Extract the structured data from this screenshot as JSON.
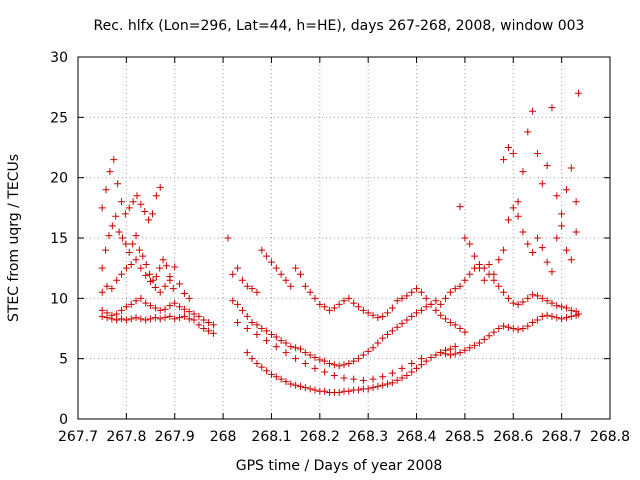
{
  "chart_data": {
    "type": "scatter",
    "title": "Rec. hlfx (Lon=296, Lat=44, h=HE), days 267-268, 2008, window 003",
    "xlabel": "GPS time / Days of year 2008",
    "ylabel": "STEC from uqrg / TECUs",
    "xlim": [
      267.7,
      268.8
    ],
    "ylim": [
      0,
      30
    ],
    "xticks": [
      267.7,
      267.8,
      267.9,
      268.0,
      268.1,
      268.2,
      268.3,
      268.4,
      268.5,
      268.6,
      268.7,
      268.8
    ],
    "xtick_labels": [
      "267.7",
      "267.8",
      "267.9",
      "268",
      "268.1",
      "268.2",
      "268.3",
      "268.4",
      "268.5",
      "268.6",
      "268.7",
      "268.8"
    ],
    "yticks": [
      0,
      5,
      10,
      15,
      20,
      25,
      30
    ],
    "ytick_labels": [
      "0",
      "5",
      "10",
      "15",
      "20",
      "25",
      "30"
    ],
    "grid": true,
    "marker": "plus",
    "color": "#cc0000",
    "series": [
      {
        "x": [
          267.75,
          267.76,
          267.77,
          267.78,
          267.79,
          267.8,
          267.81,
          267.82,
          267.83,
          267.84,
          267.85,
          267.86,
          267.87,
          267.88,
          267.89,
          267.9,
          267.91,
          267.92,
          267.93,
          267.94,
          267.95,
          267.96,
          267.97,
          267.98,
          267.75,
          267.76,
          267.77,
          267.78,
          267.79,
          267.8,
          267.81,
          267.82,
          267.83,
          267.84,
          267.85,
          267.86,
          267.87,
          267.88,
          267.89,
          267.9,
          267.91,
          267.92,
          267.93,
          267.94,
          267.95,
          267.96,
          267.97,
          267.98,
          267.75,
          267.76,
          267.77,
          267.78,
          267.79,
          267.8,
          267.81,
          267.82,
          267.83,
          267.84,
          267.85,
          267.86,
          267.87,
          267.88,
          267.89,
          267.9,
          267.91,
          267.92,
          267.93,
          267.75,
          267.757,
          267.764,
          267.771,
          267.778,
          267.785,
          267.792,
          267.799,
          267.806,
          267.813,
          267.82,
          267.827,
          267.834,
          267.841,
          267.848,
          267.855,
          267.862,
          267.869,
          267.876,
          267.883,
          267.89,
          267.897,
          267.75,
          267.758,
          267.766,
          267.774,
          267.782,
          267.79,
          267.798,
          267.806,
          267.814,
          267.822,
          267.83,
          267.838,
          267.846,
          267.854,
          267.862,
          267.87,
          268.01,
          268.02,
          268.03,
          268.04,
          268.05,
          268.06,
          268.07,
          268.08,
          268.09,
          268.1,
          268.11,
          268.12,
          268.13,
          268.14,
          268.15,
          268.16,
          268.17,
          268.18,
          268.19,
          268.2,
          268.21,
          268.22,
          268.23,
          268.24,
          268.25,
          268.26,
          268.27,
          268.28,
          268.29,
          268.3,
          268.31,
          268.32,
          268.33,
          268.34,
          268.35,
          268.36,
          268.37,
          268.38,
          268.39,
          268.4,
          268.41,
          268.42,
          268.43,
          268.44,
          268.45,
          268.46,
          268.47,
          268.48,
          268.49,
          268.5,
          268.02,
          268.03,
          268.04,
          268.05,
          268.06,
          268.07,
          268.08,
          268.09,
          268.1,
          268.11,
          268.12,
          268.13,
          268.14,
          268.15,
          268.16,
          268.17,
          268.18,
          268.19,
          268.2,
          268.21,
          268.22,
          268.23,
          268.24,
          268.25,
          268.26,
          268.27,
          268.28,
          268.29,
          268.3,
          268.31,
          268.32,
          268.33,
          268.34,
          268.35,
          268.36,
          268.37,
          268.38,
          268.39,
          268.4,
          268.41,
          268.42,
          268.43,
          268.44,
          268.05,
          268.06,
          268.07,
          268.08,
          268.09,
          268.1,
          268.11,
          268.12,
          268.13,
          268.14,
          268.15,
          268.16,
          268.17,
          268.18,
          268.19,
          268.2,
          268.21,
          268.22,
          268.23,
          268.24,
          268.25,
          268.26,
          268.27,
          268.28,
          268.29,
          268.3,
          268.31,
          268.32,
          268.33,
          268.34,
          268.35,
          268.36,
          268.37,
          268.38,
          268.39,
          268.4,
          268.41,
          268.42,
          268.43,
          268.44,
          268.45,
          268.46,
          268.47,
          268.48,
          268.03,
          268.05,
          268.07,
          268.09,
          268.11,
          268.13,
          268.15,
          268.17,
          268.19,
          268.21,
          268.23,
          268.25,
          268.27,
          268.29,
          268.31,
          268.33,
          268.35,
          268.37,
          268.39,
          268.41,
          268.45,
          268.46,
          268.47,
          268.48,
          268.49,
          268.5,
          268.51,
          268.52,
          268.53,
          268.54,
          268.55,
          268.56,
          268.57,
          268.58,
          268.59,
          268.6,
          268.61,
          268.62,
          268.63,
          268.64,
          268.65,
          268.66,
          268.67,
          268.68,
          268.69,
          268.7,
          268.71,
          268.72,
          268.73,
          268.735,
          268.45,
          268.46,
          268.47,
          268.48,
          268.49,
          268.5,
          268.51,
          268.52,
          268.53,
          268.54,
          268.55,
          268.56,
          268.57,
          268.58,
          268.59,
          268.6,
          268.61,
          268.62,
          268.63,
          268.64,
          268.65,
          268.66,
          268.67,
          268.68,
          268.69,
          268.7,
          268.71,
          268.72,
          268.73,
          268.58,
          268.59,
          268.6,
          268.61,
          268.62,
          268.63,
          268.64,
          268.65,
          268.66,
          268.67,
          268.68,
          268.69,
          268.7,
          268.71,
          268.72,
          268.73,
          268.735,
          268.49,
          268.5,
          268.51,
          268.52,
          268.53,
          268.54,
          268.55,
          268.56,
          268.57,
          268.58,
          268.59,
          268.6,
          268.61,
          268.62,
          268.63,
          268.64,
          268.65,
          268.66,
          268.67,
          268.68,
          268.69,
          268.7,
          268.71,
          268.72,
          268.73
        ],
        "y": [
          8.5,
          8.4,
          8.3,
          8.2,
          8.3,
          8.2,
          8.3,
          8.4,
          8.3,
          8.2,
          8.3,
          8.4,
          8.3,
          8.4,
          8.5,
          8.3,
          8.4,
          8.5,
          8.3,
          8.2,
          7.8,
          7.5,
          7.3,
          7.1,
          9.0,
          8.8,
          8.6,
          8.7,
          9.0,
          9.3,
          9.5,
          9.8,
          10.0,
          9.6,
          9.4,
          9.2,
          9.0,
          9.1,
          9.4,
          9.6,
          9.3,
          9.1,
          8.9,
          8.7,
          8.5,
          8.2,
          8.0,
          7.8,
          10.5,
          11.0,
          10.8,
          11.5,
          12.0,
          12.5,
          12.8,
          13.2,
          12.5,
          11.9,
          11.4,
          10.9,
          10.5,
          11.0,
          11.8,
          12.6,
          11.2,
          10.4,
          10.0,
          12.5,
          14.0,
          15.2,
          16.0,
          16.8,
          15.5,
          15.0,
          14.5,
          13.8,
          14.5,
          15.2,
          14.0,
          13.5,
          12.8,
          12.0,
          11.5,
          11.8,
          12.5,
          13.2,
          12.7,
          11.5,
          10.8,
          17.5,
          19.0,
          20.5,
          21.5,
          19.5,
          18.0,
          17.0,
          17.5,
          18.0,
          18.5,
          17.8,
          17.2,
          16.5,
          17.0,
          18.5,
          19.2,
          15.0,
          12.0,
          12.5,
          11.5,
          11.0,
          10.8,
          10.5,
          14.0,
          13.5,
          13.0,
          12.5,
          12.0,
          11.5,
          11.0,
          12.5,
          12.0,
          11.0,
          10.5,
          10.0,
          9.5,
          9.3,
          9.0,
          9.2,
          9.5,
          9.8,
          10.0,
          9.6,
          9.3,
          9.0,
          8.8,
          8.6,
          8.4,
          8.5,
          8.8,
          9.2,
          9.8,
          10.0,
          10.2,
          10.5,
          10.8,
          10.5,
          10.0,
          9.5,
          9.0,
          8.6,
          8.3,
          8.0,
          7.8,
          7.5,
          7.2,
          9.8,
          9.5,
          9.0,
          8.5,
          8.0,
          7.8,
          7.5,
          7.3,
          7.0,
          6.8,
          6.5,
          6.3,
          6.0,
          5.9,
          5.8,
          5.5,
          5.3,
          5.1,
          4.9,
          4.8,
          4.6,
          4.5,
          4.4,
          4.5,
          4.6,
          4.8,
          5.0,
          5.3,
          5.6,
          5.9,
          6.3,
          6.7,
          7.0,
          7.3,
          7.6,
          7.9,
          8.2,
          8.5,
          8.8,
          9.0,
          9.3,
          9.5,
          9.8,
          5.5,
          5.0,
          4.6,
          4.3,
          4.0,
          3.7,
          3.5,
          3.3,
          3.1,
          2.9,
          2.8,
          2.7,
          2.6,
          2.5,
          2.4,
          2.3,
          2.3,
          2.2,
          2.2,
          2.2,
          2.3,
          2.3,
          2.4,
          2.4,
          2.5,
          2.5,
          2.6,
          2.7,
          2.8,
          2.9,
          3.0,
          3.2,
          3.4,
          3.6,
          3.9,
          4.2,
          4.5,
          4.8,
          5.1,
          5.3,
          5.5,
          5.7,
          5.8,
          6.0,
          8.0,
          7.5,
          7.0,
          6.5,
          6.0,
          5.5,
          5.0,
          4.6,
          4.2,
          3.9,
          3.6,
          3.4,
          3.3,
          3.2,
          3.3,
          3.5,
          3.8,
          4.2,
          4.6,
          5.0,
          5.5,
          5.4,
          5.3,
          5.4,
          5.5,
          5.7,
          5.9,
          6.1,
          6.3,
          6.6,
          6.9,
          7.2,
          7.5,
          7.7,
          7.6,
          7.5,
          7.4,
          7.5,
          7.7,
          8.0,
          8.2,
          8.5,
          8.6,
          8.5,
          8.4,
          8.3,
          8.4,
          8.5,
          8.6,
          8.7,
          9.5,
          10.0,
          10.5,
          10.8,
          11.0,
          11.5,
          12.0,
          12.5,
          12.8,
          12.5,
          12.0,
          11.5,
          11.0,
          10.5,
          10.0,
          9.6,
          9.5,
          9.7,
          10.0,
          10.3,
          10.2,
          10.0,
          9.8,
          9.6,
          9.4,
          9.3,
          9.2,
          9.0,
          8.9,
          21.5,
          22.5,
          22.0,
          18.0,
          20.5,
          23.8,
          25.5,
          22.0,
          19.5,
          21.0,
          25.8,
          18.5,
          17.0,
          19.0,
          20.8,
          18.0,
          27.0,
          17.6,
          15.0,
          14.5,
          13.5,
          12.5,
          11.5,
          12.8,
          12.0,
          13.2,
          14.0,
          16.5,
          17.5,
          16.8,
          15.5,
          14.5,
          13.8,
          15.0,
          14.2,
          13.0,
          12.2,
          15.0,
          16.0,
          14.0,
          13.2,
          15.5
        ]
      }
    ]
  }
}
